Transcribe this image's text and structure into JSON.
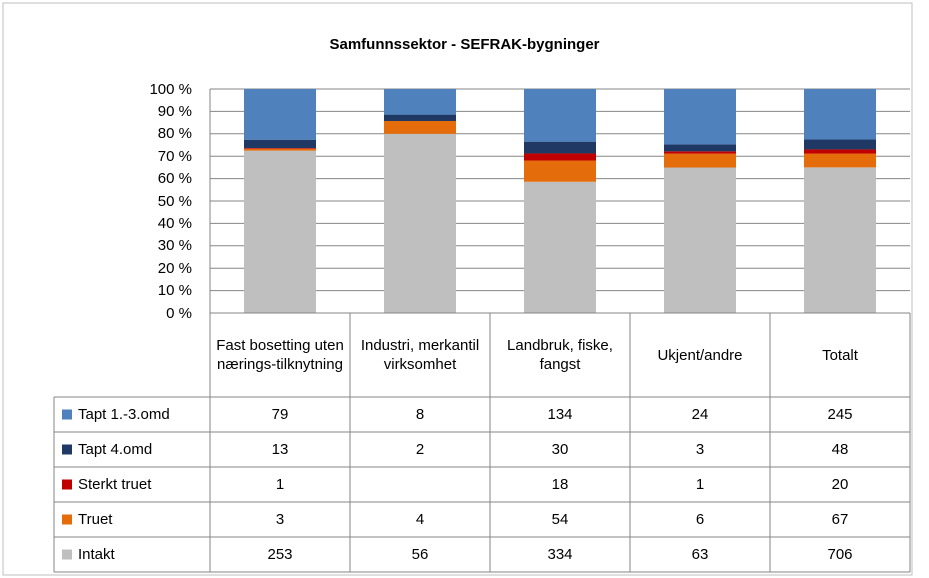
{
  "chart_data": {
    "type": "bar",
    "stacking": "percent",
    "title": "Samfunnssektor - SEFRAK-bygninger",
    "categories": [
      "Fast bosetting uten nærings-tilknytning",
      "Industri, merkantil virksomhet",
      "Landbruk, fiske, fangst",
      "Ukjent/andre",
      "Totalt"
    ],
    "series": [
      {
        "name": "Tapt 1.-3.omd",
        "color": "#4f81bd",
        "values": [
          79,
          8,
          134,
          24,
          245
        ]
      },
      {
        "name": "Tapt 4.omd",
        "color": "#1f3864",
        "values": [
          13,
          2,
          30,
          3,
          48
        ]
      },
      {
        "name": "Sterkt truet",
        "color": "#c00000",
        "values": [
          1,
          null,
          18,
          1,
          20
        ]
      },
      {
        "name": "Truet",
        "color": "#e46c0a",
        "values": [
          3,
          4,
          54,
          6,
          67
        ]
      },
      {
        "name": "Intakt",
        "color": "#bfbfbf",
        "values": [
          253,
          56,
          334,
          63,
          706
        ]
      }
    ],
    "ylim": [
      0,
      100
    ],
    "yticks": [
      {
        "value": 0,
        "label": "0 %"
      },
      {
        "value": 10,
        "label": "10 %"
      },
      {
        "value": 20,
        "label": "20 %"
      },
      {
        "value": 30,
        "label": "30 %"
      },
      {
        "value": 40,
        "label": "40 %"
      },
      {
        "value": 50,
        "label": "50 %"
      },
      {
        "value": 60,
        "label": "60 %"
      },
      {
        "value": 70,
        "label": "70 %"
      },
      {
        "value": 80,
        "label": "80 %"
      },
      {
        "value": 90,
        "label": "90 %"
      },
      {
        "value": 100,
        "label": "100 %"
      }
    ],
    "grid": true,
    "data_table": true
  }
}
